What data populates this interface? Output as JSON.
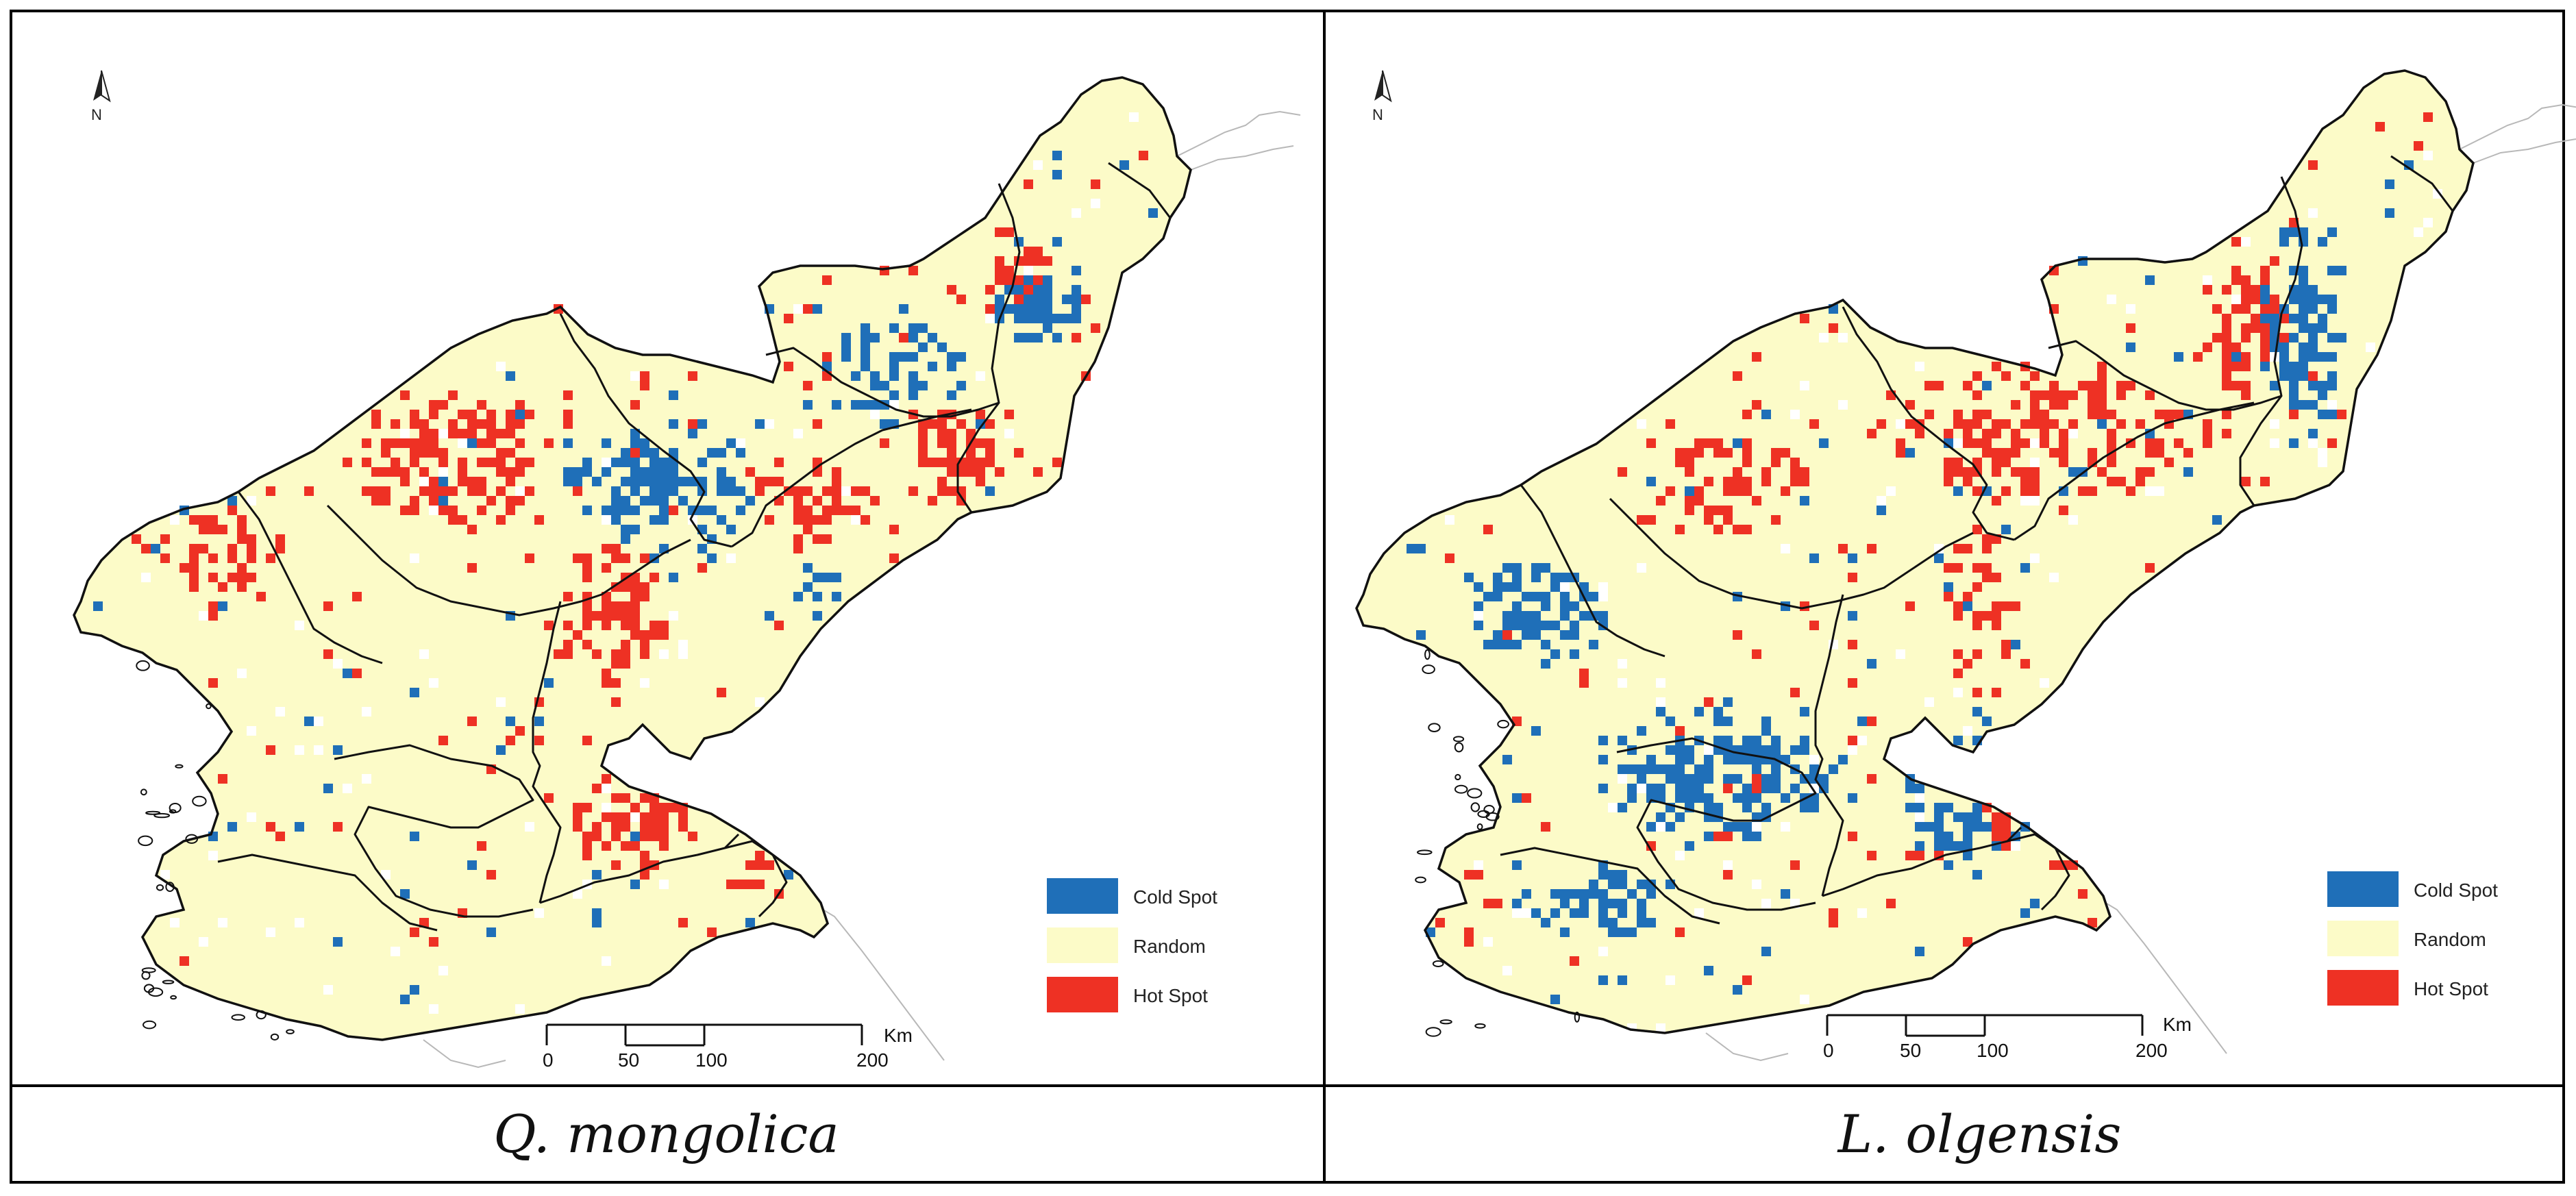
{
  "panels": [
    {
      "id": "left",
      "caption": "Q. mongolica",
      "north_label": "N",
      "scale": {
        "ticks": [
          "0",
          "50",
          "100",
          "200"
        ],
        "unit": "Km"
      },
      "legend": [
        {
          "label": "Cold Spot",
          "color": "#1f6fb8"
        },
        {
          "label": "Random",
          "color": "#fcfbc8"
        },
        {
          "label": "Hot Spot",
          "color": "#ee3124"
        }
      ],
      "cluster_mix": {
        "hot": 0.2,
        "cold": 0.12
      }
    },
    {
      "id": "right",
      "caption": "L. olgensis",
      "north_label": "N",
      "scale": {
        "ticks": [
          "0",
          "50",
          "100",
          "200"
        ],
        "unit": "Km"
      },
      "legend": [
        {
          "label": "Cold Spot",
          "color": "#1f6fb8"
        },
        {
          "label": "Random",
          "color": "#fcfbc8"
        },
        {
          "label": "Hot Spot",
          "color": "#ee3124"
        }
      ],
      "cluster_mix": {
        "hot": 0.22,
        "cold": 0.22
      }
    }
  ]
}
